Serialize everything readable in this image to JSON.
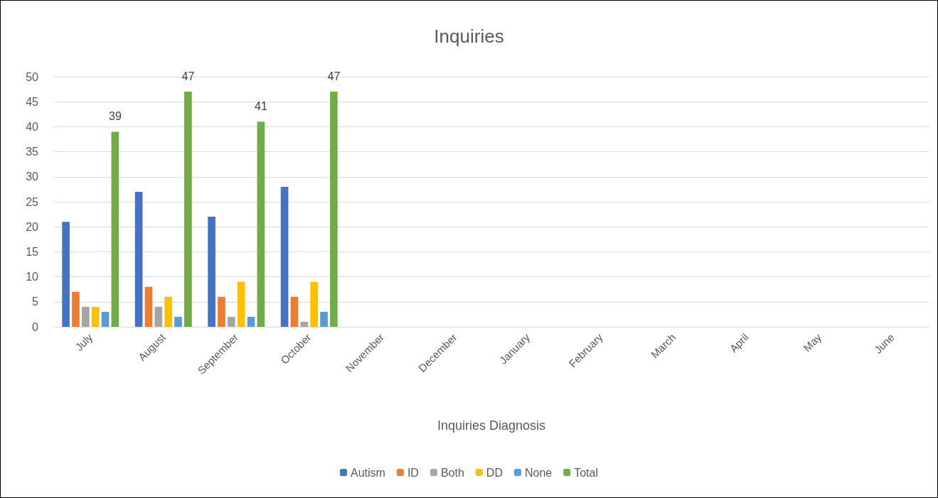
{
  "chart_data": {
    "type": "bar",
    "title": "Inquiries",
    "xlabel": "Inquiries Diagnosis",
    "categories": [
      "July",
      "August",
      "September",
      "October",
      "November",
      "December",
      "January",
      "February",
      "March",
      "April",
      "May",
      "June"
    ],
    "series": [
      {
        "name": "Autism",
        "color": "#4472c4",
        "values": [
          21,
          27,
          22,
          28,
          null,
          null,
          null,
          null,
          null,
          null,
          null,
          null
        ]
      },
      {
        "name": "ID",
        "color": "#ed7d31",
        "values": [
          7,
          8,
          6,
          6,
          null,
          null,
          null,
          null,
          null,
          null,
          null,
          null
        ]
      },
      {
        "name": "Both",
        "color": "#a5a5a5",
        "values": [
          4,
          4,
          2,
          1,
          null,
          null,
          null,
          null,
          null,
          null,
          null,
          null
        ]
      },
      {
        "name": "DD",
        "color": "#ffc000",
        "values": [
          4,
          6,
          9,
          9,
          null,
          null,
          null,
          null,
          null,
          null,
          null,
          null
        ]
      },
      {
        "name": "None",
        "color": "#5b9bd5",
        "values": [
          3,
          2,
          2,
          3,
          null,
          null,
          null,
          null,
          null,
          null,
          null,
          null
        ]
      },
      {
        "name": "Total",
        "color": "#70ad47",
        "values": [
          39,
          47,
          41,
          47,
          null,
          null,
          null,
          null,
          null,
          null,
          null,
          null
        ],
        "value_labels": [
          "39",
          "47",
          "41",
          "47",
          null,
          null,
          null,
          null,
          null,
          null,
          null,
          null
        ]
      }
    ],
    "ylim": [
      0,
      50
    ],
    "yticks": [
      0,
      5,
      10,
      15,
      20,
      25,
      30,
      35,
      40,
      45,
      50
    ],
    "grid": "y",
    "legend": "bottom"
  }
}
